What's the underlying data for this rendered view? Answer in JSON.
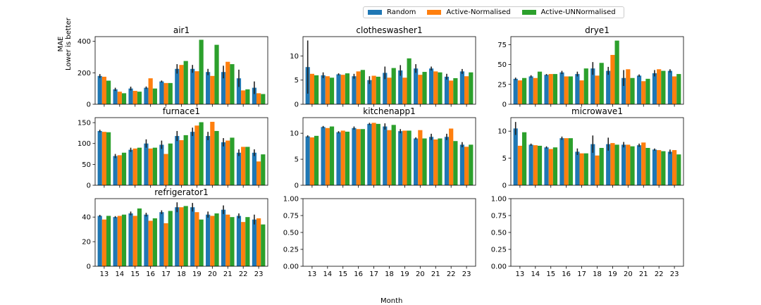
{
  "legend": {
    "entries": [
      {
        "label": "Random",
        "color": "#1f77b4"
      },
      {
        "label": "Active-Normalised",
        "color": "#ff7f0e"
      },
      {
        "label": "Active-UNNormalised",
        "color": "#2ca02c"
      }
    ]
  },
  "axes": {
    "xlabel": "Month",
    "ylabel_line1": "MAE",
    "ylabel_line2": "Lower is better"
  },
  "chart_data": [
    {
      "type": "bar",
      "title": "air1",
      "categories": [
        "13",
        "14",
        "15",
        "16",
        "17",
        "18",
        "19",
        "20",
        "21",
        "22",
        "23"
      ],
      "ylim": [
        0,
        430
      ],
      "yticks": [
        0,
        200,
        400
      ],
      "show_xticklabels": false,
      "series": [
        {
          "name": "Random",
          "values": [
            180,
            95,
            100,
            105,
            145,
            225,
            225,
            205,
            205,
            165,
            105
          ],
          "errors": [
            12,
            10,
            12,
            8,
            6,
            30,
            25,
            20,
            40,
            55,
            40
          ]
        },
        {
          "name": "Active-Normalised",
          "values": [
            175,
            80,
            85,
            165,
            135,
            250,
            210,
            180,
            270,
            88,
            70
          ],
          "errors": [
            0,
            0,
            0,
            0,
            0,
            0,
            0,
            0,
            0,
            0,
            0
          ]
        },
        {
          "name": "Active-UNNormalised",
          "values": [
            150,
            70,
            80,
            100,
            135,
            275,
            410,
            378,
            255,
            95,
            65
          ],
          "errors": [
            0,
            0,
            0,
            0,
            0,
            0,
            0,
            0,
            0,
            0,
            0
          ]
        }
      ]
    },
    {
      "type": "bar",
      "title": "clotheswasher1",
      "categories": [
        "13",
        "14",
        "15",
        "16",
        "17",
        "18",
        "19",
        "20",
        "21",
        "22",
        "23"
      ],
      "ylim": [
        0,
        14
      ],
      "yticks": [
        0,
        5,
        10
      ],
      "show_xticklabels": false,
      "series": [
        {
          "name": "Random",
          "values": [
            7.7,
            6.0,
            6.2,
            5.8,
            5.0,
            6.5,
            7.0,
            7.4,
            7.4,
            5.7,
            6.8
          ],
          "errors": [
            5.5,
            0.6,
            0.2,
            0.5,
            0.8,
            1.3,
            1.1,
            0.9,
            0.4,
            0.6,
            0.5
          ]
        },
        {
          "name": "Active-Normalised",
          "values": [
            6.3,
            5.8,
            6.1,
            6.8,
            5.9,
            5.5,
            5.5,
            6.1,
            6.8,
            4.9,
            5.8
          ],
          "errors": [
            0,
            0,
            0,
            0,
            0,
            0,
            0,
            0,
            0,
            0,
            0
          ]
        },
        {
          "name": "Active-UNNormalised",
          "values": [
            6.0,
            5.5,
            6.4,
            7.1,
            5.7,
            7.5,
            9.5,
            6.7,
            6.6,
            5.4,
            6.6
          ],
          "errors": [
            0,
            0,
            0,
            0,
            0,
            0,
            0,
            0,
            0,
            0,
            0
          ]
        }
      ]
    },
    {
      "type": "bar",
      "title": "drye1",
      "categories": [
        "13",
        "14",
        "15",
        "16",
        "17",
        "18",
        "19",
        "20",
        "21",
        "22",
        "23"
      ],
      "ylim": [
        0,
        85
      ],
      "yticks": [
        0,
        25,
        50,
        75
      ],
      "show_xticklabels": false,
      "series": [
        {
          "name": "Random",
          "values": [
            32,
            35,
            37,
            40,
            38,
            45,
            42,
            33,
            36,
            39,
            42
          ],
          "errors": [
            1.5,
            1.5,
            1,
            2,
            3,
            8,
            5,
            10,
            1.5,
            4,
            2
          ]
        },
        {
          "name": "Active-Normalised",
          "values": [
            30,
            33,
            38,
            35,
            30,
            36,
            62,
            44,
            29,
            44,
            35
          ],
          "errors": [
            0,
            0,
            0,
            0,
            0,
            0,
            0,
            0,
            0,
            0,
            0
          ]
        },
        {
          "name": "Active-UNNormalised",
          "values": [
            33,
            41,
            38,
            35,
            45,
            52,
            80,
            33,
            32,
            42,
            38
          ],
          "errors": [
            0,
            0,
            0,
            0,
            0,
            0,
            0,
            0,
            0,
            0,
            0
          ]
        }
      ]
    },
    {
      "type": "bar",
      "title": "furnace1",
      "categories": [
        "13",
        "14",
        "15",
        "16",
        "17",
        "18",
        "19",
        "20",
        "21",
        "22",
        "23"
      ],
      "ylim": [
        0,
        162
      ],
      "yticks": [
        0,
        50,
        100,
        150
      ],
      "show_xticklabels": false,
      "series": [
        {
          "name": "Random",
          "values": [
            130,
            70,
            85,
            100,
            97,
            118,
            128,
            118,
            103,
            78,
            78
          ],
          "errors": [
            3,
            5,
            5,
            10,
            10,
            12,
            10,
            10,
            10,
            8,
            8
          ]
        },
        {
          "name": "Active-Normalised",
          "values": [
            128,
            72,
            88,
            88,
            75,
            108,
            143,
            152,
            107,
            92,
            57
          ],
          "errors": [
            0,
            0,
            0,
            0,
            0,
            0,
            0,
            0,
            0,
            0,
            0
          ]
        },
        {
          "name": "Active-UNNormalised",
          "values": [
            127,
            78,
            90,
            90,
            100,
            120,
            151,
            130,
            114,
            92,
            74
          ],
          "errors": [
            0,
            0,
            0,
            0,
            0,
            0,
            0,
            0,
            0,
            0,
            0
          ]
        }
      ]
    },
    {
      "type": "bar",
      "title": "kitchenapp1",
      "categories": [
        "13",
        "14",
        "15",
        "16",
        "17",
        "18",
        "19",
        "20",
        "21",
        "22",
        "23"
      ],
      "ylim": [
        0,
        13
      ],
      "yticks": [
        0,
        5,
        10
      ],
      "show_xticklabels": false,
      "series": [
        {
          "name": "Random",
          "values": [
            9.4,
            11.2,
            10.2,
            11.0,
            11.8,
            11.3,
            10.4,
            9.0,
            9.3,
            9.3,
            7.8
          ],
          "errors": [
            0.2,
            0.2,
            0.2,
            0.3,
            0.2,
            0.6,
            0.4,
            0.2,
            0.6,
            0.6,
            0.5
          ]
        },
        {
          "name": "Active-Normalised",
          "values": [
            9.2,
            11.0,
            10.5,
            10.8,
            12.0,
            10.6,
            10.5,
            10.6,
            8.8,
            10.9,
            7.4
          ],
          "errors": [
            0,
            0,
            0,
            0,
            0,
            0,
            0,
            0,
            0,
            0,
            0
          ]
        },
        {
          "name": "Active-UNNormalised",
          "values": [
            9.5,
            11.3,
            10.3,
            10.8,
            11.8,
            11.6,
            10.5,
            9.0,
            9.0,
            8.5,
            7.8
          ],
          "errors": [
            0,
            0,
            0,
            0,
            0,
            0,
            0,
            0,
            0,
            0,
            0
          ]
        }
      ]
    },
    {
      "type": "bar",
      "title": "microwave1",
      "categories": [
        "13",
        "14",
        "15",
        "16",
        "17",
        "18",
        "19",
        "20",
        "21",
        "22",
        "23"
      ],
      "ylim": [
        0,
        12.5
      ],
      "yticks": [
        0,
        5,
        10
      ],
      "show_xticklabels": false,
      "series": [
        {
          "name": "Random",
          "values": [
            10.5,
            7.5,
            7.0,
            8.7,
            6.2,
            7.6,
            7.6,
            7.5,
            7.4,
            6.6,
            6.2
          ],
          "errors": [
            1.2,
            0.2,
            0.2,
            0.3,
            0.6,
            1.6,
            1.2,
            0.5,
            0.3,
            0.2,
            0.4
          ]
        },
        {
          "name": "Active-Normalised",
          "values": [
            7.3,
            7.4,
            6.7,
            8.7,
            5.9,
            5.5,
            7.8,
            7.5,
            7.9,
            6.5,
            6.5
          ],
          "errors": [
            0,
            0,
            0,
            0,
            0,
            0,
            0,
            0,
            0,
            0,
            0
          ]
        },
        {
          "name": "Active-UNNormalised",
          "values": [
            9.8,
            7.3,
            7.0,
            8.7,
            5.9,
            6.9,
            7.5,
            7.2,
            6.9,
            6.3,
            5.7
          ],
          "errors": [
            0,
            0,
            0,
            0,
            0,
            0,
            0,
            0,
            0,
            0,
            0
          ]
        }
      ]
    },
    {
      "type": "bar",
      "title": "refrigerator1",
      "categories": [
        "13",
        "14",
        "15",
        "16",
        "17",
        "18",
        "19",
        "20",
        "21",
        "22",
        "23"
      ],
      "ylim": [
        0,
        55
      ],
      "yticks": [
        0,
        20,
        40
      ],
      "show_xticklabels": true,
      "series": [
        {
          "name": "Random",
          "values": [
            41,
            40,
            43,
            42,
            44,
            48,
            48,
            42,
            46,
            41,
            38
          ],
          "errors": [
            0.8,
            0.8,
            1.5,
            1.5,
            1.5,
            4,
            3.5,
            2.5,
            3.5,
            2,
            4
          ]
        },
        {
          "name": "Active-Normalised",
          "values": [
            38,
            41,
            41,
            37,
            35,
            48,
            44,
            41,
            42,
            36,
            39
          ],
          "errors": [
            0,
            0,
            0,
            0,
            0,
            0,
            0,
            0,
            0,
            0,
            0
          ]
        },
        {
          "name": "Active-UNNormalised",
          "values": [
            41,
            42,
            47,
            39,
            45,
            49,
            38,
            43,
            40,
            40,
            34
          ],
          "errors": [
            0,
            0,
            0,
            0,
            0,
            0,
            0,
            0,
            0,
            0,
            0
          ]
        }
      ]
    },
    {
      "type": "bar",
      "title": "",
      "categories": [
        "13",
        "14",
        "15",
        "16",
        "17",
        "18",
        "19",
        "20",
        "21",
        "22",
        "23"
      ],
      "ylim": [
        0,
        1
      ],
      "yticks": [
        "0.00",
        "0.25",
        "0.50",
        "0.75",
        "1.00"
      ],
      "show_xticklabels": true,
      "series": []
    },
    {
      "type": "bar",
      "title": "",
      "categories": [
        "13",
        "14",
        "15",
        "16",
        "17",
        "18",
        "19",
        "20",
        "21",
        "22",
        "23"
      ],
      "ylim": [
        0,
        1
      ],
      "yticks": [
        "0.00",
        "0.25",
        "0.50",
        "0.75",
        "1.00"
      ],
      "show_xticklabels": true,
      "series": []
    }
  ]
}
